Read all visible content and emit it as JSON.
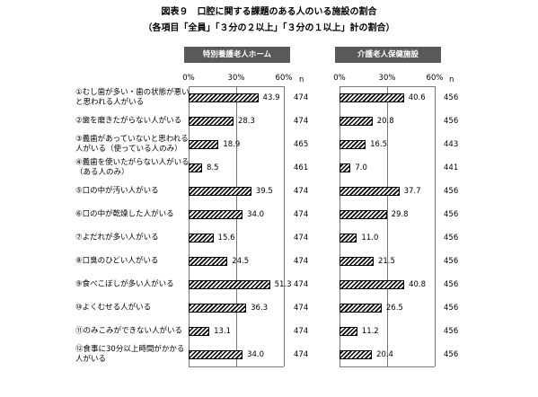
{
  "title": "図表９　口腔に関する課題のある人のいる施設の割合",
  "subtitle": "（各項目「全員」「３分の２以上」「３分の１以上」計の割合）",
  "chart_data": [
    {
      "type": "bar",
      "orientation": "horizontal",
      "title": "特別養護老人ホーム",
      "categories": [
        "①むし歯が多い・歯の状態が悪い\nと思われる人がいる",
        "②歯を磨きたがらない人がいる",
        "③義歯があっていないと思われる\n人がいる（使っている人のみ）",
        "④義歯を使いたがらない人がいる\n（ある人のみ）",
        "⑤口の中が汚い人がいる",
        "⑥口の中が乾燥した人がいる",
        "⑦よだれが多い人がいる",
        "⑧口臭のひどい人がいる",
        "⑨食べこぼしが多い人がいる",
        "⑩よくむせる人がいる",
        "⑪のみこみができない人がいる",
        "⑫食事に30分以上時間がかかる\n人がいる"
      ],
      "values": [
        43.9,
        28.3,
        18.9,
        8.5,
        39.5,
        34.0,
        15.6,
        24.5,
        51.3,
        36.3,
        13.1,
        34.0
      ],
      "value_labels": [
        "43.9",
        "28.3",
        "18.9",
        "8.5",
        "39.5",
        "34.0",
        "15.6",
        "24.5",
        "51.3",
        "36.3",
        "13.1",
        "34.0"
      ],
      "n_label": "n",
      "n": [
        474,
        474,
        465,
        461,
        474,
        474,
        474,
        474,
        474,
        474,
        474,
        474
      ],
      "xlim": [
        0,
        60
      ],
      "xticks": [
        {
          "value": 0,
          "label": "0%"
        },
        {
          "value": 30,
          "label": "30%"
        },
        {
          "value": 60,
          "label": "60%"
        }
      ],
      "grid": true
    },
    {
      "type": "bar",
      "orientation": "horizontal",
      "title": "介護老人保健施設",
      "values": [
        40.6,
        20.8,
        16.5,
        7.0,
        37.7,
        29.8,
        11.0,
        21.5,
        40.8,
        26.5,
        11.2,
        20.4
      ],
      "value_labels": [
        "40.6",
        "20.8",
        "16.5",
        "7.0",
        "37.7",
        "29.8",
        "11.0",
        "21.5",
        "40.8",
        "26.5",
        "11.2",
        "20.4"
      ],
      "n_label": "n",
      "n": [
        456,
        456,
        443,
        441,
        456,
        456,
        456,
        456,
        456,
        456,
        456,
        456
      ],
      "xlim": [
        0,
        60
      ],
      "xticks": [
        {
          "value": 0,
          "label": "0%"
        },
        {
          "value": 30,
          "label": "30%"
        },
        {
          "value": 60,
          "label": "60%"
        }
      ],
      "grid": true
    }
  ]
}
